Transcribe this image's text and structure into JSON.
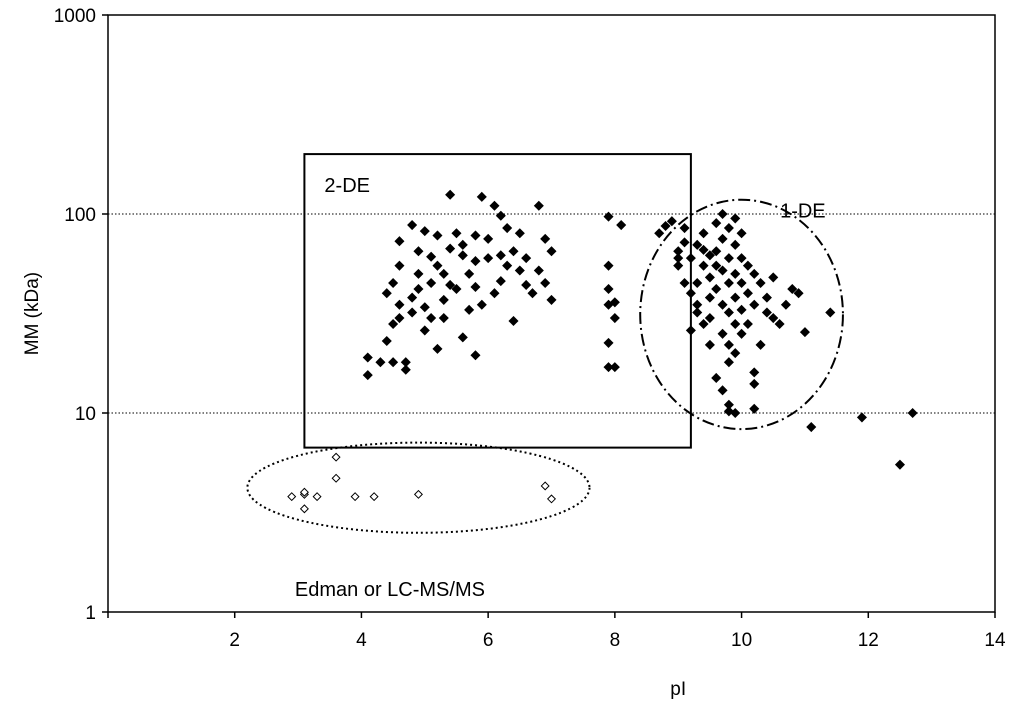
{
  "chart_data": {
    "type": "scatter",
    "title": "",
    "xlabel": "pI",
    "ylabel": "MM (kDa)",
    "xlim": [
      0,
      14
    ],
    "ylim": [
      1,
      1000
    ],
    "yscale": "log",
    "x_ticks": [
      2,
      4,
      6,
      8,
      10,
      12,
      14
    ],
    "y_ticks": [
      1,
      10,
      100,
      1000
    ],
    "y_gridlines": [
      10,
      100
    ],
    "grid": "horizontal dotted at 10 and 100",
    "legend": "none",
    "colors": {
      "filled_marker": "#000000",
      "open_marker": "#ffffff",
      "axis": "#000000"
    },
    "series": [
      {
        "marker": "filled-diamond",
        "points": [
          [
            4.1,
            15.5
          ],
          [
            4.1,
            19
          ],
          [
            4.3,
            18
          ],
          [
            4.5,
            18
          ],
          [
            4.7,
            16.5
          ],
          [
            4.7,
            18
          ],
          [
            4.6,
            35
          ],
          [
            4.5,
            28
          ],
          [
            4.4,
            40
          ],
          [
            4.5,
            45
          ],
          [
            4.6,
            55
          ],
          [
            4.8,
            32
          ],
          [
            4.9,
            65
          ],
          [
            4.9,
            50
          ],
          [
            5.0,
            26
          ],
          [
            5.1,
            30
          ],
          [
            5.1,
            45
          ],
          [
            5.2,
            55
          ],
          [
            5.3,
            37
          ],
          [
            5.4,
            44
          ],
          [
            4.6,
            73
          ],
          [
            4.8,
            88
          ],
          [
            5.0,
            82
          ],
          [
            5.2,
            78
          ],
          [
            5.4,
            125
          ],
          [
            5.5,
            80
          ],
          [
            5.6,
            62
          ],
          [
            5.7,
            50
          ],
          [
            5.8,
            43
          ],
          [
            5.9,
            122
          ],
          [
            6.0,
            75
          ],
          [
            6.1,
            110
          ],
          [
            6.2,
            98
          ],
          [
            6.3,
            85
          ],
          [
            6.4,
            65
          ],
          [
            6.5,
            52
          ],
          [
            6.6,
            44
          ],
          [
            6.7,
            40
          ],
          [
            6.8,
            110
          ],
          [
            6.9,
            75
          ],
          [
            7.0,
            65
          ],
          [
            7.0,
            37
          ],
          [
            6.9,
            45
          ],
          [
            6.3,
            55
          ],
          [
            6.1,
            40
          ],
          [
            5.5,
            42
          ],
          [
            5.3,
            30
          ],
          [
            5.2,
            21
          ],
          [
            5.6,
            24
          ],
          [
            5.8,
            19.5
          ],
          [
            6.4,
            29
          ],
          [
            5.9,
            35
          ],
          [
            5.1,
            61
          ],
          [
            5.8,
            58
          ],
          [
            6.6,
            60
          ],
          [
            4.9,
            42
          ],
          [
            5.7,
            33
          ],
          [
            6.2,
            46
          ],
          [
            6.8,
            52
          ],
          [
            5.0,
            34
          ],
          [
            4.8,
            38
          ],
          [
            5.6,
            70
          ],
          [
            6.0,
            60
          ],
          [
            5.4,
            67
          ],
          [
            6.5,
            80
          ],
          [
            4.4,
            23
          ],
          [
            4.6,
            30
          ],
          [
            5.3,
            50
          ],
          [
            6.2,
            62
          ],
          [
            5.8,
            78
          ],
          [
            7.9,
            55
          ],
          [
            7.9,
            42
          ],
          [
            7.9,
            35
          ],
          [
            7.9,
            22.5
          ],
          [
            7.9,
            17
          ],
          [
            8.0,
            17
          ],
          [
            7.9,
            97
          ],
          [
            8.1,
            88
          ],
          [
            8.0,
            36
          ],
          [
            8.0,
            30
          ],
          [
            8.7,
            80
          ],
          [
            8.8,
            87
          ],
          [
            8.9,
            92
          ],
          [
            9.0,
            65
          ],
          [
            9.0,
            60
          ],
          [
            9.1,
            85
          ],
          [
            9.0,
            55
          ],
          [
            9.1,
            45
          ],
          [
            9.2,
            40
          ],
          [
            9.3,
            35
          ],
          [
            9.3,
            70
          ],
          [
            9.4,
            80
          ],
          [
            9.4,
            55
          ],
          [
            9.5,
            48
          ],
          [
            9.5,
            38
          ],
          [
            9.5,
            30
          ],
          [
            9.6,
            90
          ],
          [
            9.6,
            65
          ],
          [
            9.6,
            42
          ],
          [
            9.7,
            100
          ],
          [
            9.7,
            75
          ],
          [
            9.7,
            52
          ],
          [
            9.7,
            35
          ],
          [
            9.7,
            25
          ],
          [
            9.8,
            85
          ],
          [
            9.8,
            60
          ],
          [
            9.8,
            45
          ],
          [
            9.8,
            32
          ],
          [
            9.8,
            22
          ],
          [
            9.8,
            18
          ],
          [
            9.9,
            95
          ],
          [
            9.9,
            70
          ],
          [
            9.9,
            50
          ],
          [
            9.9,
            38
          ],
          [
            9.9,
            28
          ],
          [
            9.9,
            20
          ],
          [
            10.0,
            80
          ],
          [
            10.0,
            60
          ],
          [
            10.0,
            45
          ],
          [
            10.0,
            33
          ],
          [
            10.0,
            25
          ],
          [
            10.1,
            55
          ],
          [
            10.1,
            40
          ],
          [
            10.2,
            50
          ],
          [
            10.2,
            35
          ],
          [
            10.3,
            45
          ],
          [
            10.4,
            38
          ],
          [
            10.5,
            48
          ],
          [
            10.5,
            30
          ],
          [
            10.6,
            28
          ],
          [
            10.7,
            35
          ],
          [
            10.8,
            42
          ],
          [
            10.9,
            40
          ],
          [
            11.0,
            25.5
          ],
          [
            11.4,
            32
          ],
          [
            9.6,
            15
          ],
          [
            9.7,
            13
          ],
          [
            9.8,
            11
          ],
          [
            9.8,
            10.2
          ],
          [
            9.9,
            10
          ],
          [
            9.5,
            22
          ],
          [
            9.4,
            28
          ],
          [
            9.3,
            32
          ],
          [
            9.2,
            26
          ],
          [
            9.3,
            45
          ],
          [
            9.2,
            60
          ],
          [
            9.1,
            72
          ],
          [
            9.5,
            62
          ],
          [
            9.6,
            55
          ],
          [
            9.4,
            66
          ],
          [
            11.1,
            8.5
          ],
          [
            11.9,
            9.5
          ],
          [
            12.5,
            5.5
          ],
          [
            12.7,
            10
          ],
          [
            10.2,
            10.5
          ],
          [
            10.2,
            16
          ],
          [
            10.2,
            14
          ],
          [
            10.3,
            22
          ],
          [
            10.1,
            28
          ],
          [
            10.4,
            32
          ]
        ]
      },
      {
        "marker": "open-diamond",
        "points": [
          [
            2.9,
            3.8
          ],
          [
            3.1,
            3.9
          ],
          [
            3.1,
            4.0
          ],
          [
            3.1,
            3.3
          ],
          [
            3.3,
            3.8
          ],
          [
            3.6,
            6.0
          ],
          [
            3.6,
            4.7
          ],
          [
            3.9,
            3.8
          ],
          [
            4.2,
            3.8
          ],
          [
            4.9,
            3.9
          ],
          [
            6.9,
            4.3
          ],
          [
            7.0,
            3.7
          ]
        ]
      }
    ],
    "annotations": [
      {
        "text": "2-DE",
        "shape": "rectangle",
        "x_range": [
          3.1,
          9.2
        ],
        "y_range": [
          6.7,
          200
        ]
      },
      {
        "text": "1-DE",
        "shape": "dash-dot-ellipse",
        "center": [
          10.0,
          34
        ],
        "x_range": [
          8.4,
          11.6
        ],
        "y_range": [
          8.3,
          118
        ]
      },
      {
        "text": "Edman or LC-MS/MS",
        "shape": "dotted-ellipse",
        "center": [
          4.9,
          4.1
        ],
        "x_range": [
          2.2,
          7.6
        ],
        "y_range": [
          2.5,
          7.1
        ]
      }
    ]
  }
}
